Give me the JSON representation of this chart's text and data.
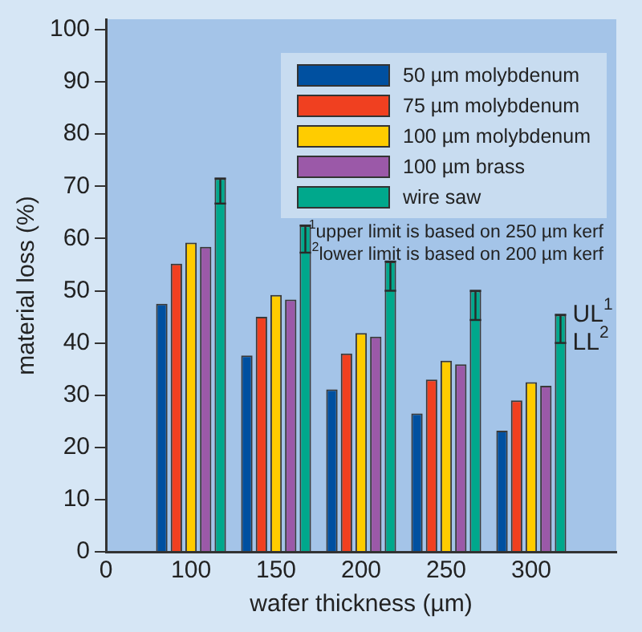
{
  "chart_data": {
    "type": "bar",
    "xlabel": "wafer thickness (µm)",
    "ylabel": "material loss (%)",
    "categories": [
      "0",
      "100",
      "150",
      "200",
      "250",
      "300",
      null
    ],
    "series": [
      {
        "name": "50 µm molybdenum",
        "color": "#0050a0",
        "values": [
          null,
          47.5,
          37.6,
          31.1,
          26.5,
          23.2,
          null
        ]
      },
      {
        "name": "75 µm molybdenum",
        "color": "#f04020",
        "values": [
          null,
          55.2,
          45,
          38,
          33,
          29,
          null
        ]
      },
      {
        "name": "100 µm molybdenum",
        "color": "#ffcc00",
        "values": [
          null,
          59.2,
          49.2,
          41.9,
          36.6,
          32.5,
          null
        ]
      },
      {
        "name": "100 µm brass",
        "color": "#9b59a8",
        "values": [
          null,
          58.4,
          48.3,
          41.2,
          35.9,
          31.8,
          null
        ]
      },
      {
        "name": "wire saw",
        "color": "#00a88c",
        "values": [
          null,
          71.5,
          62.5,
          55.6,
          50,
          45.4,
          null
        ],
        "errors": [
          null,
          [
            66.7,
            71.5
          ],
          [
            57.3,
            62.5
          ],
          [
            50,
            55.6
          ],
          [
            44.4,
            50
          ],
          [
            40,
            45.4
          ],
          null
        ]
      }
    ],
    "ylim": [
      0,
      102
    ],
    "yticks": [
      0,
      10,
      20,
      30,
      40,
      50,
      60,
      70,
      80,
      90,
      100
    ],
    "grid": false,
    "legend": "top right",
    "annotations": [
      "$^{1}$upper limit is based on 250 µm kerf",
      "$^{2}$lower limit is based on 200 µm kerf",
      "UL$^{1}$",
      "LL$^{2}$"
    ]
  }
}
